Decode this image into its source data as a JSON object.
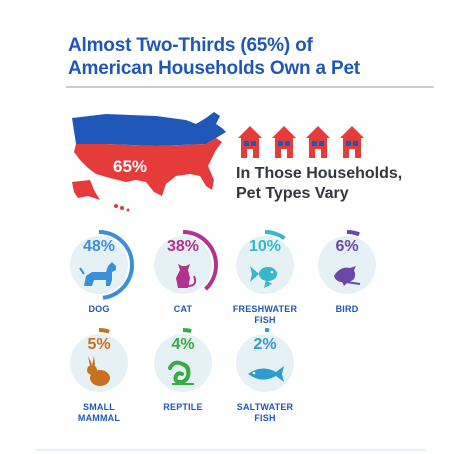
{
  "title": {
    "line1": "Almost Two-Thirds (65%) of",
    "line2": "American Households Own a Pet"
  },
  "map": {
    "percent": "65%"
  },
  "subhead": {
    "line1": "In Those Households,",
    "line2": "Pet Types Vary"
  },
  "colors": {
    "blue": "#1f57b8",
    "red": "#e53b3b",
    "dog": "#3b8fd6",
    "cat": "#b3318f",
    "fish": "#35b8c9",
    "bird": "#6a48a8",
    "mammal": "#c7701d",
    "reptile": "#36ab3f",
    "saltfish": "#2f9ccf",
    "circle": "#e6f1f5"
  },
  "pets": [
    {
      "id": "dog",
      "percent": "48%",
      "fraction": 0.48,
      "label1": "DOG",
      "label2": "",
      "label3": "",
      "icon": "dog-icon"
    },
    {
      "id": "cat",
      "percent": "38%",
      "fraction": 0.38,
      "label1": "CAT",
      "label2": "",
      "label3": "",
      "icon": "cat-icon"
    },
    {
      "id": "fish",
      "percent": "10%",
      "fraction": 0.1,
      "label1": "FRESHWATER",
      "label2": "FISH",
      "label3": "",
      "icon": "goldfish-icon"
    },
    {
      "id": "bird",
      "percent": "6%",
      "fraction": 0.06,
      "label1": "BIRD",
      "label2": "",
      "label3": "",
      "icon": "bird-icon"
    },
    {
      "id": "mammal",
      "percent": "5%",
      "fraction": 0.05,
      "label1": "SMALL",
      "label2": "MAMMAL",
      "label3": "",
      "icon": "rabbit-icon"
    },
    {
      "id": "reptile",
      "percent": "4%",
      "fraction": 0.04,
      "label1": "REPTILE",
      "label2": "",
      "label3": "",
      "icon": "chameleon-icon"
    },
    {
      "id": "saltfish",
      "percent": "2%",
      "fraction": 0.02,
      "label1": "SALTWATER",
      "label2": "FISH",
      "label3": "",
      "icon": "fish-icon"
    }
  ]
}
